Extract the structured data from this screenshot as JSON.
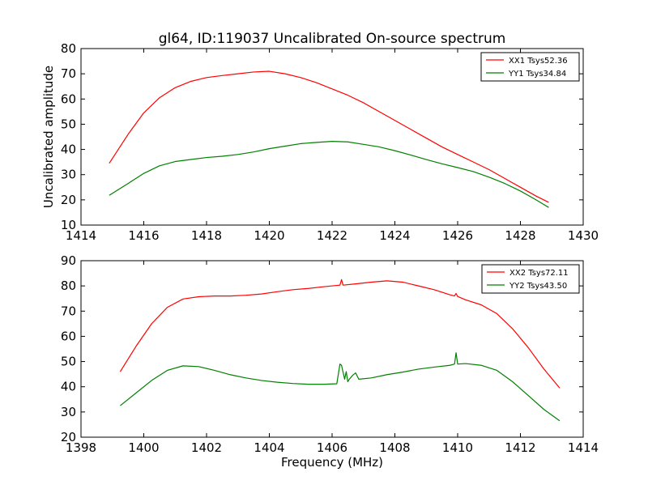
{
  "title": "gl64, ID:119037 Uncalibrated On-source spectrum",
  "chart_data": [
    {
      "type": "line",
      "title": "gl64, ID:119037 Uncalibrated On-source spectrum",
      "xlabel": "",
      "ylabel": "Uncalibrated amplitude",
      "xlim": [
        1414,
        1430
      ],
      "ylim": [
        10,
        80
      ],
      "xticks": [
        1414,
        1416,
        1418,
        1420,
        1422,
        1424,
        1426,
        1428,
        1430
      ],
      "yticks": [
        10,
        20,
        30,
        40,
        50,
        60,
        70,
        80
      ],
      "grid": false,
      "legend": "top-right",
      "series": [
        {
          "name": "XX1 Tsys52.36",
          "color": "#ff0000",
          "x": [
            1414.9,
            1415.5,
            1416.0,
            1416.5,
            1417.0,
            1417.5,
            1418.0,
            1418.5,
            1419.0,
            1419.5,
            1420.0,
            1420.5,
            1421.0,
            1421.5,
            1422.0,
            1422.5,
            1423.0,
            1423.5,
            1424.0,
            1424.5,
            1425.0,
            1425.5,
            1426.0,
            1426.5,
            1427.0,
            1427.5,
            1428.0,
            1428.5,
            1428.9
          ],
          "y": [
            34.5,
            46.0,
            54.5,
            60.5,
            64.5,
            67.0,
            68.5,
            69.3,
            70.0,
            70.7,
            71.0,
            70.0,
            68.5,
            66.5,
            64.0,
            61.5,
            58.5,
            55.0,
            51.5,
            48.0,
            44.5,
            41.0,
            38.0,
            35.0,
            32.0,
            28.5,
            25.0,
            21.5,
            19.0
          ]
        },
        {
          "name": "YY1 Tsys34.84",
          "color": "#008000",
          "x": [
            1414.9,
            1415.5,
            1416.0,
            1416.5,
            1417.0,
            1417.5,
            1418.0,
            1418.5,
            1419.0,
            1419.5,
            1420.0,
            1420.5,
            1421.0,
            1421.5,
            1422.0,
            1422.5,
            1423.0,
            1423.5,
            1424.0,
            1424.5,
            1425.0,
            1425.5,
            1426.0,
            1426.5,
            1427.0,
            1427.5,
            1428.0,
            1428.5,
            1428.9
          ],
          "y": [
            21.8,
            26.5,
            30.5,
            33.5,
            35.2,
            36.0,
            36.8,
            37.3,
            38.0,
            39.0,
            40.3,
            41.3,
            42.3,
            42.8,
            43.2,
            43.0,
            42.0,
            41.0,
            39.5,
            37.8,
            36.0,
            34.3,
            32.8,
            31.2,
            29.0,
            26.5,
            23.5,
            20.0,
            17.0
          ]
        }
      ]
    },
    {
      "type": "line",
      "title": "",
      "xlabel": "Frequency (MHz)",
      "ylabel": "",
      "xlim": [
        1398,
        1414
      ],
      "ylim": [
        20,
        90
      ],
      "xticks": [
        1398,
        1400,
        1402,
        1404,
        1406,
        1408,
        1410,
        1412,
        1414
      ],
      "yticks": [
        20,
        30,
        40,
        50,
        60,
        70,
        80,
        90
      ],
      "grid": false,
      "legend": "top-right",
      "series": [
        {
          "name": "XX2 Tsys72.11",
          "color": "#ff0000",
          "x": [
            1399.25,
            1399.75,
            1400.25,
            1400.75,
            1401.25,
            1401.75,
            1402.25,
            1402.75,
            1403.25,
            1403.75,
            1404.25,
            1404.75,
            1405.25,
            1405.75,
            1406.25,
            1406.3,
            1406.35,
            1406.75,
            1407.25,
            1407.75,
            1408.25,
            1408.75,
            1409.25,
            1409.75,
            1409.9,
            1409.95,
            1410.0,
            1410.25,
            1410.75,
            1411.25,
            1411.75,
            1412.25,
            1412.75,
            1413.25
          ],
          "y": [
            46.0,
            56.0,
            65.0,
            71.5,
            74.8,
            75.7,
            76.0,
            76.0,
            76.3,
            76.8,
            77.7,
            78.5,
            79.0,
            79.7,
            80.3,
            82.5,
            80.3,
            80.8,
            81.5,
            82.0,
            81.5,
            80.0,
            78.5,
            76.5,
            76.0,
            77.0,
            75.8,
            74.5,
            72.5,
            69.0,
            63.0,
            55.5,
            47.0,
            39.5
          ]
        },
        {
          "name": "YY2 Tsys43.50",
          "color": "#008000",
          "x": [
            1399.25,
            1399.75,
            1400.25,
            1400.75,
            1401.25,
            1401.75,
            1402.25,
            1402.75,
            1403.25,
            1403.75,
            1404.25,
            1404.75,
            1405.25,
            1405.75,
            1406.15,
            1406.25,
            1406.3,
            1406.4,
            1406.45,
            1406.5,
            1406.55,
            1406.65,
            1406.75,
            1406.85,
            1407.25,
            1407.75,
            1408.25,
            1408.75,
            1409.25,
            1409.75,
            1409.9,
            1409.95,
            1410.0,
            1410.25,
            1410.75,
            1411.25,
            1411.75,
            1412.25,
            1412.75,
            1413.25
          ],
          "y": [
            32.5,
            37.5,
            42.5,
            46.5,
            48.3,
            48.0,
            46.5,
            44.8,
            43.5,
            42.5,
            41.8,
            41.3,
            41.0,
            41.0,
            41.2,
            49.0,
            48.5,
            43.0,
            46.0,
            42.0,
            43.0,
            44.5,
            45.5,
            43.0,
            43.5,
            44.8,
            45.8,
            47.0,
            47.8,
            48.5,
            49.0,
            53.5,
            49.0,
            49.2,
            48.5,
            46.5,
            42.0,
            36.5,
            31.0,
            26.5
          ]
        }
      ]
    }
  ]
}
